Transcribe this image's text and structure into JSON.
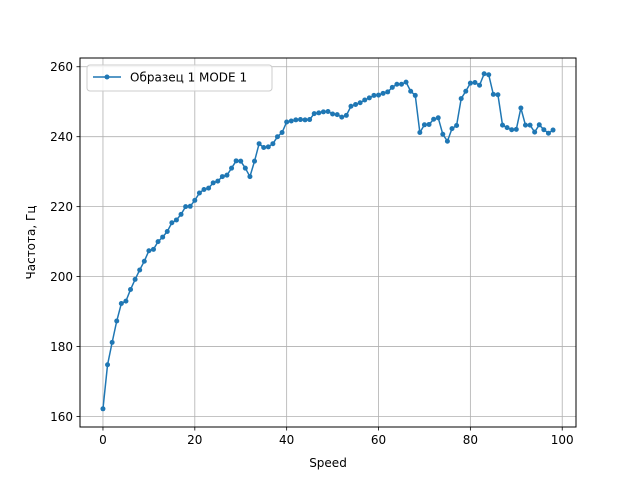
{
  "chart_data": {
    "type": "line",
    "xlabel": "Speed",
    "ylabel": "Частота, Гц",
    "xlim": [
      -5,
      103
    ],
    "ylim": [
      157,
      262.5
    ],
    "xticks": [
      0,
      20,
      40,
      60,
      80,
      100
    ],
    "yticks": [
      160,
      180,
      200,
      220,
      240,
      260
    ],
    "grid": true,
    "legend_position": "upper-left",
    "series": [
      {
        "name": "Образец 1 MODE 1",
        "color": "#1f77b4",
        "x": [
          0,
          1,
          2,
          3,
          4,
          5,
          6,
          7,
          8,
          9,
          10,
          11,
          12,
          13,
          14,
          15,
          16,
          17,
          18,
          19,
          20,
          21,
          22,
          23,
          24,
          25,
          26,
          27,
          28,
          29,
          30,
          31,
          32,
          33,
          34,
          35,
          36,
          37,
          38,
          39,
          40,
          41,
          42,
          43,
          44,
          45,
          46,
          47,
          48,
          49,
          50,
          51,
          52,
          53,
          54,
          55,
          56,
          57,
          58,
          59,
          60,
          61,
          62,
          63,
          64,
          65,
          66,
          67,
          68,
          69,
          70,
          71,
          72,
          73,
          74,
          75,
          76,
          77,
          78,
          79,
          80,
          81,
          82,
          83,
          84,
          85,
          86,
          87,
          88,
          89,
          90,
          91,
          92,
          93,
          94,
          95,
          96,
          97,
          98
        ],
        "y": [
          162.2,
          174.8,
          181.2,
          187.3,
          192.3,
          193.0,
          196.3,
          199.2,
          201.9,
          204.4,
          207.4,
          207.8,
          210.0,
          211.3,
          212.9,
          215.4,
          216.2,
          217.8,
          220.0,
          220.1,
          221.8,
          223.9,
          224.9,
          225.3,
          226.8,
          227.3,
          228.6,
          229.0,
          231.0,
          233.1,
          233.0,
          231.0,
          228.6,
          233.0,
          238.0,
          236.9,
          237.1,
          238.0,
          240.0,
          241.2,
          244.2,
          244.5,
          244.8,
          244.9,
          244.8,
          244.9,
          246.6,
          246.8,
          247.1,
          247.2,
          246.5,
          246.3,
          245.6,
          246.1,
          248.7,
          249.2,
          249.7,
          250.5,
          251.1,
          251.8,
          251.9,
          252.4,
          252.8,
          254.1,
          255.0,
          255.0,
          255.6,
          253.0,
          251.8,
          241.2,
          243.4,
          243.5,
          245.0,
          245.4,
          240.7,
          238.7,
          242.3,
          243.2,
          250.9,
          253.0,
          255.3,
          255.5,
          254.7,
          258.0,
          257.7,
          252.1,
          252.0,
          243.3,
          242.6,
          242.0,
          242.1,
          248.2,
          243.3,
          243.3,
          241.3,
          243.4,
          242.0,
          241.0,
          241.9
        ]
      }
    ]
  }
}
